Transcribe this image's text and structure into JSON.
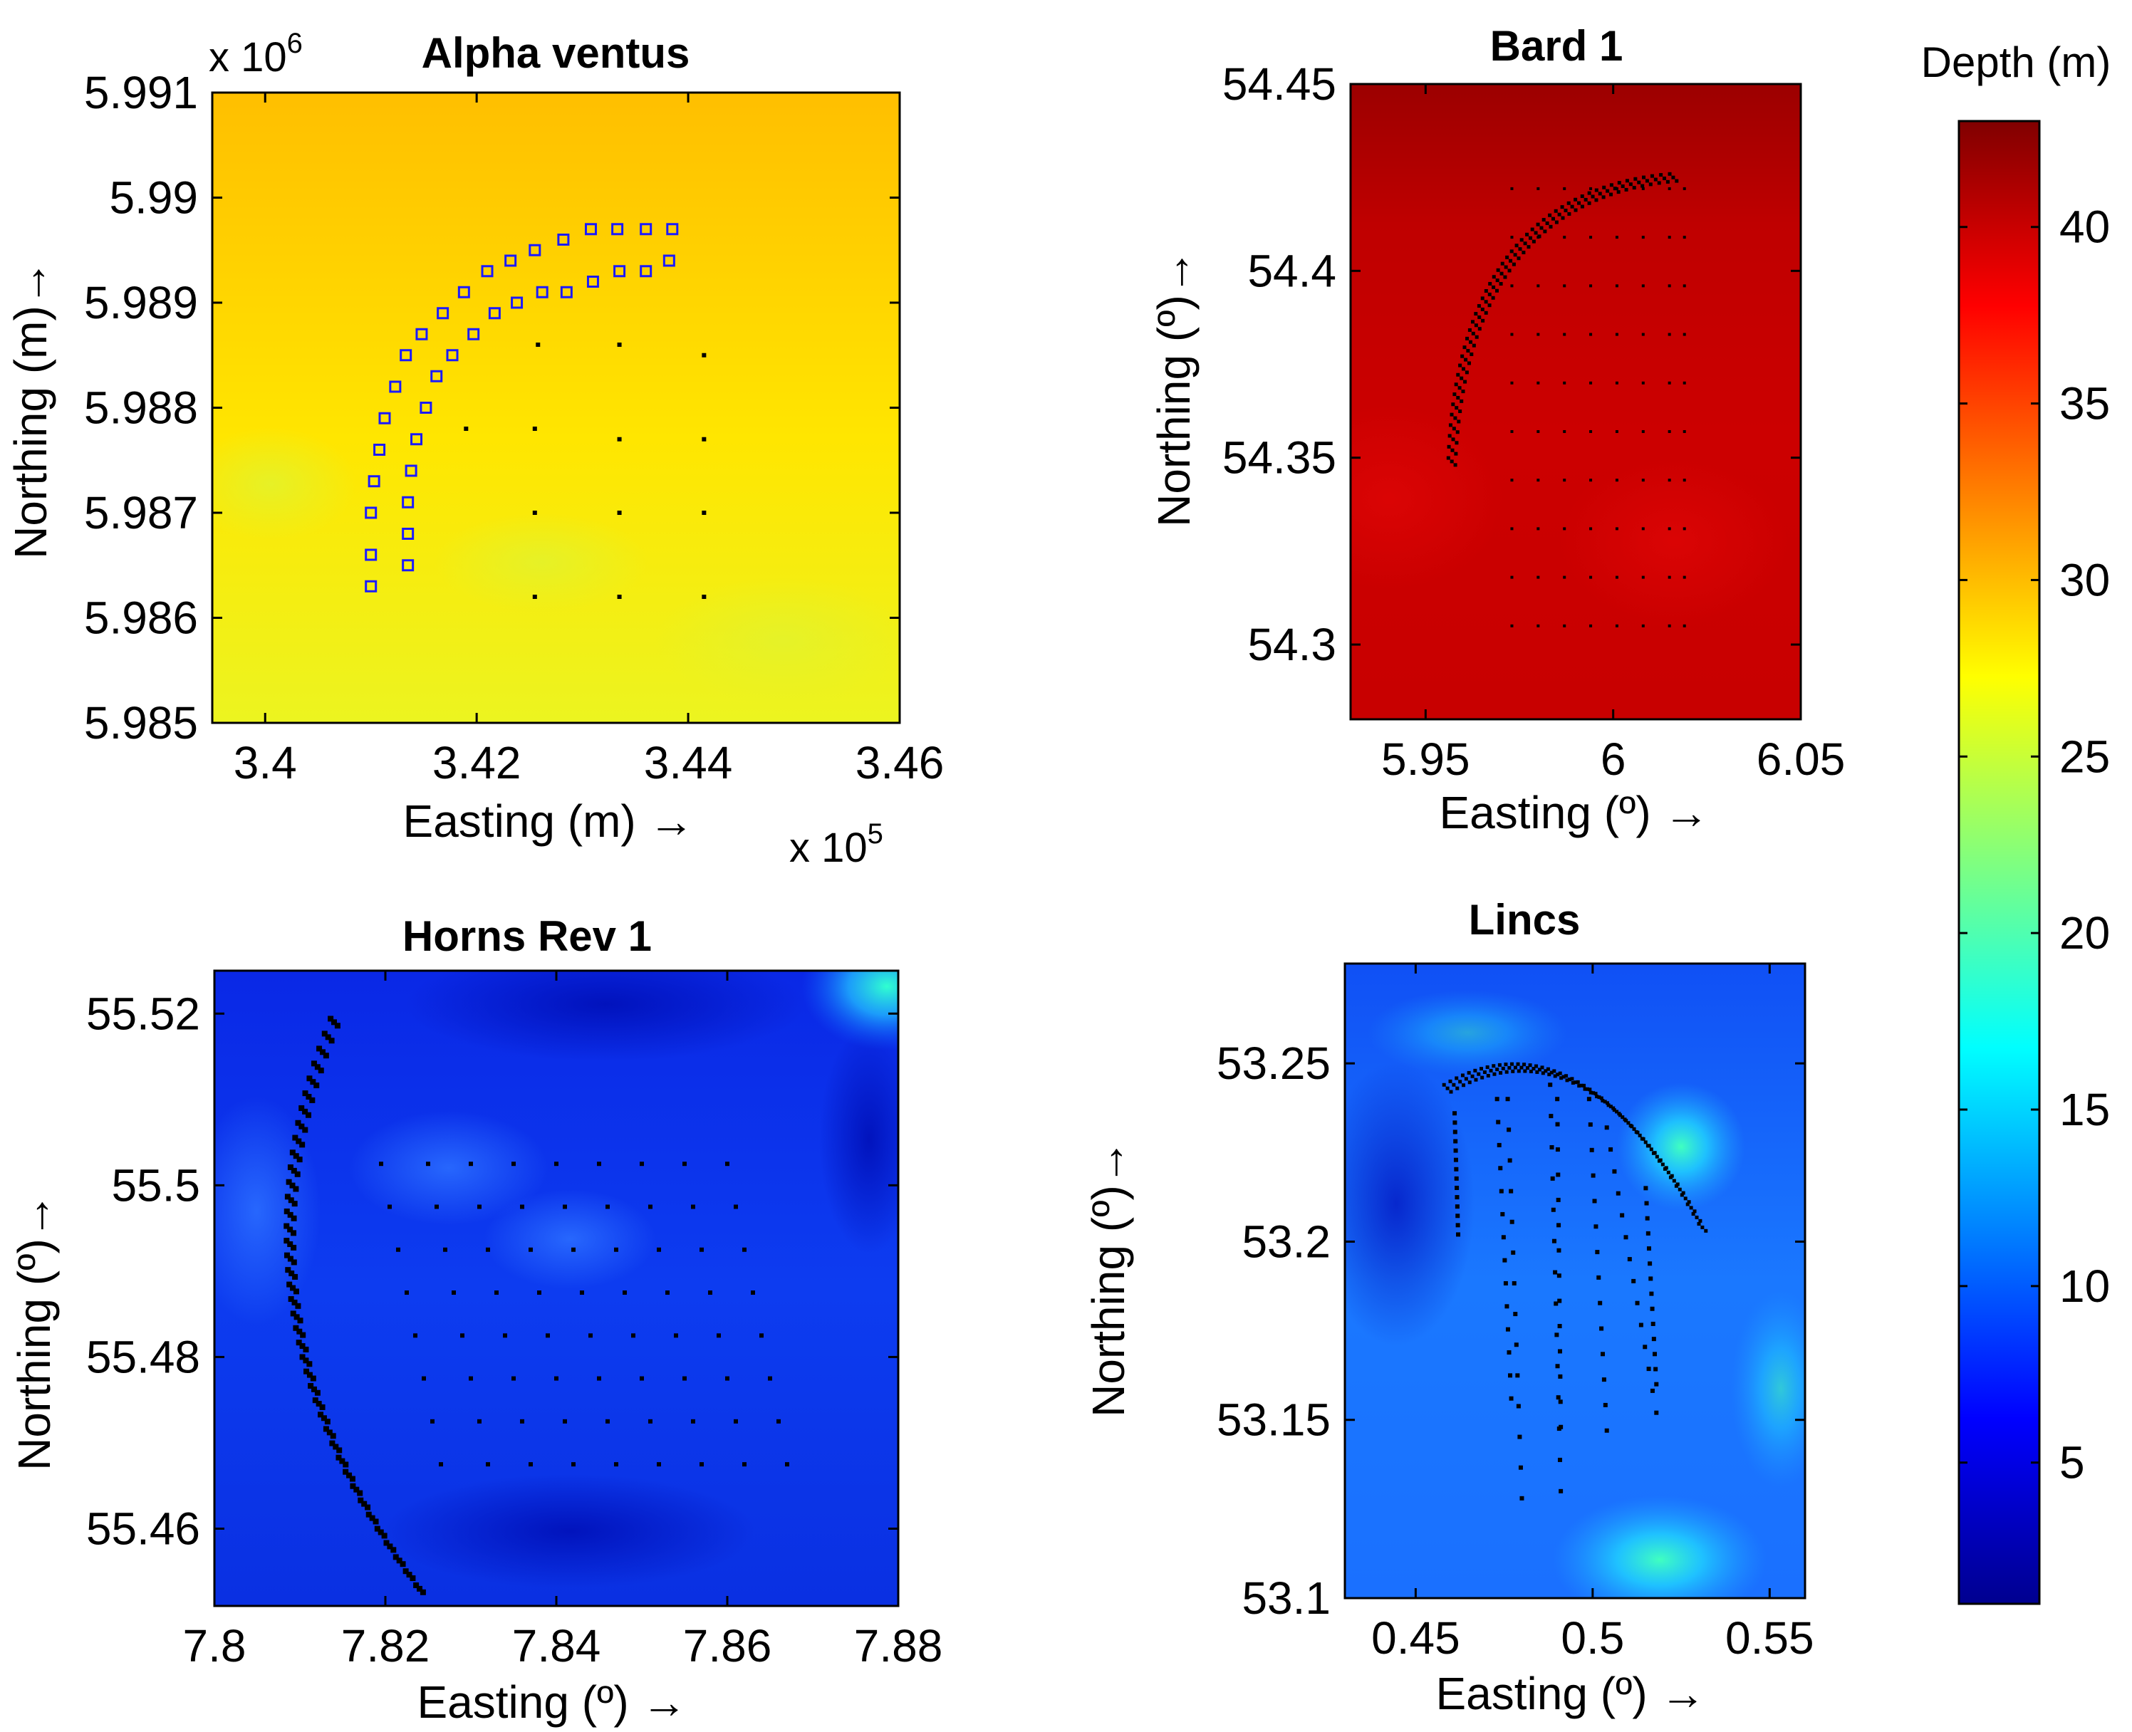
{
  "chart_data": [
    {
      "type": "heatmap",
      "title": "Alpha ventus",
      "xlabel": "Easting (m) →",
      "ylabel": "Northing (m)→",
      "x_multiplier": "x 10",
      "x_multiplier_exp": "5",
      "y_multiplier": "x 10",
      "y_multiplier_exp": "6",
      "xlim": [
        3.395,
        3.46
      ],
      "ylim": [
        5.985,
        5.991
      ],
      "xticks": [
        3.4,
        3.42,
        3.44,
        3.46
      ],
      "xtick_labels": [
        "3.4",
        "3.42",
        "3.44",
        "3.46"
      ],
      "yticks": [
        5.985,
        5.986,
        5.987,
        5.988,
        5.989,
        5.99,
        5.991
      ],
      "ytick_labels": [
        "5.985",
        "5.986",
        "5.987",
        "5.988",
        "5.989",
        "5.99",
        "5.991"
      ],
      "depth_range_m": [
        25,
        31
      ],
      "turbine_marker": "blue-square",
      "turbines": [
        [
          3.41,
          5.9863
        ],
        [
          3.41,
          5.9866
        ],
        [
          3.41,
          5.987
        ],
        [
          3.4103,
          5.9873
        ],
        [
          3.4108,
          5.9876
        ],
        [
          3.4113,
          5.9879
        ],
        [
          3.4123,
          5.9882
        ],
        [
          3.4133,
          5.9885
        ],
        [
          3.4148,
          5.9887
        ],
        [
          3.4168,
          5.9889
        ],
        [
          3.4188,
          5.9891
        ],
        [
          3.421,
          5.9893
        ],
        [
          3.4232,
          5.9894
        ],
        [
          3.4255,
          5.9895
        ],
        [
          3.4282,
          5.9896
        ],
        [
          3.4308,
          5.9897
        ],
        [
          3.4333,
          5.9897
        ],
        [
          3.436,
          5.9897
        ],
        [
          3.4385,
          5.9897
        ],
        [
          3.4135,
          5.9865
        ],
        [
          3.4135,
          5.9868
        ],
        [
          3.4135,
          5.9871
        ],
        [
          3.4138,
          5.9874
        ],
        [
          3.4143,
          5.9877
        ],
        [
          3.4152,
          5.988
        ],
        [
          3.4162,
          5.9883
        ],
        [
          3.4177,
          5.9885
        ],
        [
          3.4197,
          5.9887
        ],
        [
          3.4217,
          5.9889
        ],
        [
          3.4238,
          5.989
        ],
        [
          3.4262,
          5.9891
        ],
        [
          3.4285,
          5.9891
        ],
        [
          3.431,
          5.9892
        ],
        [
          3.4335,
          5.9893
        ],
        [
          3.436,
          5.9893
        ],
        [
          3.4382,
          5.9894
        ]
      ],
      "substations": [
        [
          3.4258,
          5.9886
        ],
        [
          3.4335,
          5.9886
        ],
        [
          3.4415,
          5.9885
        ],
        [
          3.419,
          5.9878
        ],
        [
          3.4255,
          5.9878
        ],
        [
          3.4335,
          5.9877
        ],
        [
          3.4415,
          5.9877
        ],
        [
          3.4255,
          5.987
        ],
        [
          3.4335,
          5.987
        ],
        [
          3.4415,
          5.987
        ],
        [
          3.4255,
          5.9862
        ],
        [
          3.4335,
          5.9862
        ],
        [
          3.4415,
          5.9862
        ]
      ]
    },
    {
      "type": "heatmap",
      "title": "Bard 1",
      "xlabel": "Easting (º) →",
      "ylabel": "Northing (º)→",
      "xlim": [
        5.93,
        6.05
      ],
      "ylim": [
        54.28,
        54.45
      ],
      "xticks": [
        5.95,
        6,
        6.05
      ],
      "xtick_labels": [
        "5.95",
        "6",
        "6.05"
      ],
      "yticks": [
        54.3,
        54.35,
        54.4,
        54.45
      ],
      "ytick_labels": [
        "54.3",
        "54.35",
        "54.4",
        "54.45"
      ],
      "depth_range_m": [
        38,
        43
      ],
      "arc": {
        "start": [
          5.957,
          54.349
        ],
        "control": [
          5.96,
          54.42
        ],
        "end": [
          6.016,
          54.425
        ],
        "rows": 3,
        "points_per_row": 48
      },
      "grid_x": [
        5.973,
        5.98,
        5.987,
        5.994,
        6.001,
        6.008,
        6.015,
        6.019
      ],
      "grid_y": [
        54.305,
        54.318,
        54.331,
        54.344,
        54.357,
        54.37,
        54.383,
        54.396,
        54.409,
        54.422
      ]
    },
    {
      "type": "heatmap",
      "title": "Horns Rev 1",
      "xlabel": "Easting (º) →",
      "ylabel": "Northing (º)→",
      "xlim": [
        7.8,
        7.88
      ],
      "ylim": [
        55.451,
        55.525
      ],
      "xticks": [
        7.8,
        7.82,
        7.84,
        7.86,
        7.88
      ],
      "xtick_labels": [
        "7.8",
        "7.82",
        "7.84",
        "7.86",
        "7.88"
      ],
      "yticks": [
        55.46,
        55.48,
        55.5,
        55.52
      ],
      "ytick_labels": [
        "55.46",
        "55.48",
        "55.5",
        "55.52"
      ],
      "depth_range_m": [
        5,
        18
      ],
      "arc": {
        "start": [
          7.814,
          55.519
        ],
        "control": [
          7.8,
          55.485
        ],
        "end": [
          7.824,
          55.453
        ],
        "rows": 3,
        "points_per_row": 40
      },
      "grid_rows": [
        {
          "y": 55.5025,
          "x": [
            7.8195,
            7.825,
            7.83,
            7.835,
            7.84,
            7.845,
            7.85,
            7.855,
            7.86
          ]
        },
        {
          "y": 55.4975,
          "x": [
            7.8205,
            7.826,
            7.831,
            7.836,
            7.841,
            7.846,
            7.851,
            7.856,
            7.861
          ]
        },
        {
          "y": 55.4925,
          "x": [
            7.8215,
            7.827,
            7.832,
            7.837,
            7.842,
            7.847,
            7.852,
            7.857,
            7.862
          ]
        },
        {
          "y": 55.4875,
          "x": [
            7.8225,
            7.828,
            7.833,
            7.838,
            7.843,
            7.848,
            7.853,
            7.858,
            7.863
          ]
        },
        {
          "y": 55.4825,
          "x": [
            7.8235,
            7.829,
            7.834,
            7.839,
            7.844,
            7.849,
            7.854,
            7.859,
            7.864
          ]
        },
        {
          "y": 55.4775,
          "x": [
            7.8245,
            7.83,
            7.835,
            7.84,
            7.845,
            7.85,
            7.855,
            7.86,
            7.865
          ]
        },
        {
          "y": 55.4725,
          "x": [
            7.8255,
            7.831,
            7.836,
            7.841,
            7.846,
            7.851,
            7.856,
            7.861,
            7.866
          ]
        },
        {
          "y": 55.4675,
          "x": [
            7.8265,
            7.832,
            7.837,
            7.842,
            7.847,
            7.852,
            7.857,
            7.862,
            7.867
          ]
        }
      ]
    },
    {
      "type": "heatmap",
      "title": "Lincs",
      "xlabel": "Easting (º) →",
      "ylabel": "Northing (º)→",
      "xlim": [
        0.43,
        0.56
      ],
      "ylim": [
        53.1,
        53.278
      ],
      "xticks": [
        0.45,
        0.5,
        0.55
      ],
      "xtick_labels": [
        "0.45",
        "0.5",
        "0.55"
      ],
      "yticks": [
        53.1,
        53.15,
        53.2,
        53.25
      ],
      "ytick_labels": [
        "53.1",
        "53.15",
        "53.2",
        "53.25"
      ],
      "depth_range_m": [
        5,
        20
      ],
      "arc": {
        "start": [
          0.459,
          53.243
        ],
        "control": [
          0.497,
          53.265
        ],
        "end": [
          0.531,
          53.204
        ],
        "rows": 3,
        "points_per_row": 44
      },
      "strings": [
        {
          "x0": 0.461,
          "y0": 53.236,
          "x1": 0.462,
          "y1": 53.202
        },
        {
          "x0": 0.473,
          "y0": 53.24,
          "x1": 0.477,
          "y1": 53.156
        },
        {
          "x0": 0.476,
          "y0": 53.24,
          "x1": 0.48,
          "y1": 53.128
        },
        {
          "x0": 0.488,
          "y0": 53.244,
          "x1": 0.491,
          "y1": 53.13
        },
        {
          "x0": 0.49,
          "y0": 53.24,
          "x1": 0.491,
          "y1": 53.148
        },
        {
          "x0": 0.499,
          "y0": 53.24,
          "x1": 0.504,
          "y1": 53.147
        },
        {
          "x0": 0.504,
          "y0": 53.232,
          "x1": 0.518,
          "y1": 53.152
        },
        {
          "x0": 0.515,
          "y0": 53.215,
          "x1": 0.518,
          "y1": 53.16
        }
      ]
    },
    {
      "type": "colorbar",
      "label": "Depth (m)",
      "range": [
        1,
        43
      ],
      "ticks": [
        5,
        10,
        15,
        20,
        25,
        30,
        35,
        40
      ],
      "tick_labels": [
        "5",
        "10",
        "15",
        "20",
        "25",
        "30",
        "35",
        "40"
      ],
      "colormap": "jet"
    }
  ]
}
